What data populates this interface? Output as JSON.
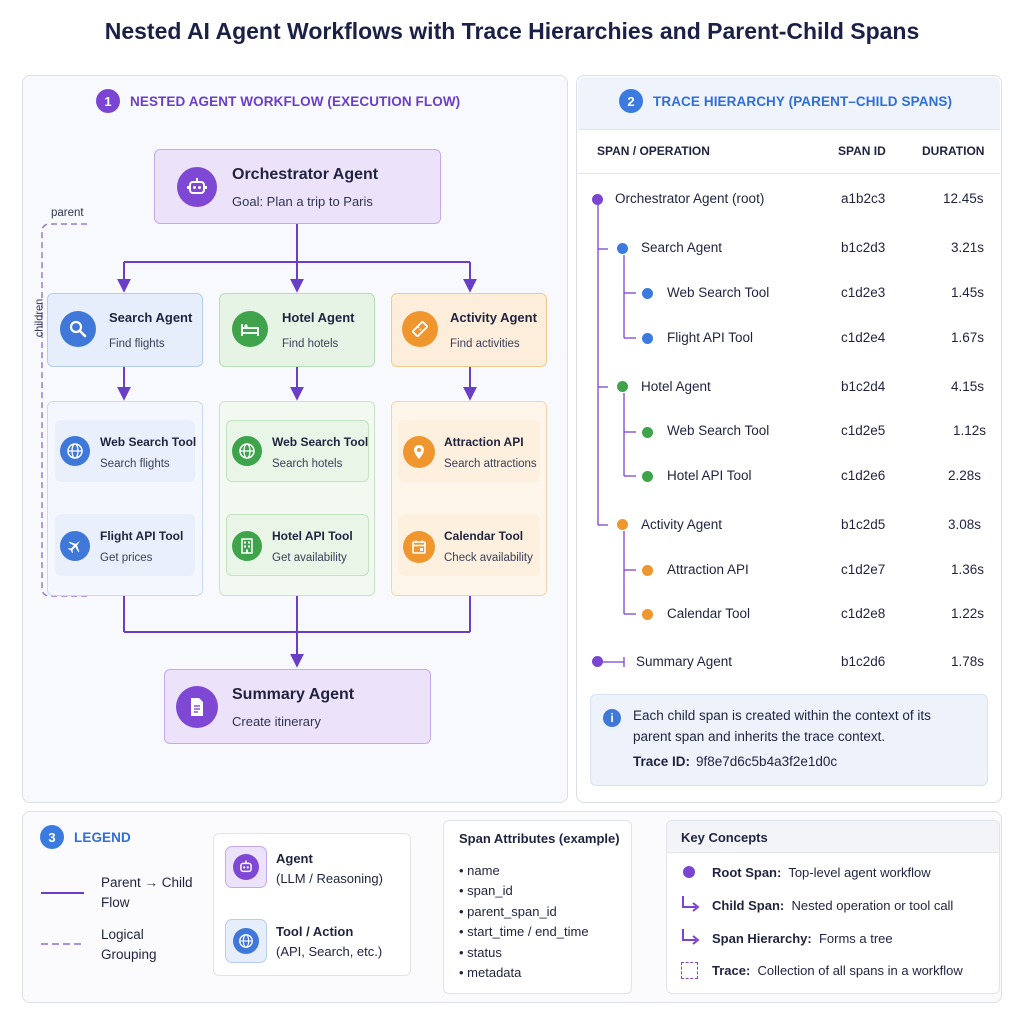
{
  "title": "Nested AI Agent Workflows with Trace Hierarchies and Parent-Child Spans",
  "colors": {
    "purple": "#7b45d3",
    "blue": "#3b7be0",
    "green": "#3ea34a",
    "orange": "#f0962f"
  },
  "workflow": {
    "number": "1",
    "heading": "NESTED AGENT WORKFLOW (EXECUTION FLOW)",
    "orchestrator": {
      "name": "Orchestrator Agent",
      "goal": "Goal: Plan a trip to Paris",
      "icon": "robot-icon"
    },
    "parent_label": "parent",
    "children_label": "children",
    "agents": [
      {
        "name": "Search Agent",
        "desc": "Find flights",
        "icon": "magnifier-icon"
      },
      {
        "name": "Hotel Agent",
        "desc": "Find hotels",
        "icon": "bed-icon"
      },
      {
        "name": "Activity Agent",
        "desc": "Find activities",
        "icon": "ticket-icon"
      }
    ],
    "tools": [
      {
        "name": "Web Search Tool",
        "desc": "Search flights",
        "icon": "globe-icon"
      },
      {
        "name": "Flight API Tool",
        "desc": "Get prices",
        "icon": "airplane-icon"
      },
      {
        "name": "Web Search Tool",
        "desc": "Search hotels",
        "icon": "globe-icon"
      },
      {
        "name": "Hotel API Tool",
        "desc": "Get availability",
        "icon": "building-icon"
      },
      {
        "name": "Attraction API",
        "desc": "Search attractions",
        "icon": "location-pin-icon"
      },
      {
        "name": "Calendar Tool",
        "desc": "Check availability",
        "icon": "calendar-icon"
      }
    ],
    "summary": {
      "name": "Summary Agent",
      "desc": "Create itinerary",
      "icon": "document-icon"
    }
  },
  "trace": {
    "number": "2",
    "heading": "TRACE HIERARCHY (PARENT–CHILD SPANS)",
    "columns": {
      "op": "SPAN / OPERATION",
      "id": "SPAN ID",
      "dur": "DURATION"
    },
    "rows": [
      {
        "name": "Orchestrator Agent (root)",
        "id": "a1b2c3",
        "dur": "12.45s"
      },
      {
        "name": "Search Agent",
        "id": "b1c2d3",
        "dur": "3.21s"
      },
      {
        "name": "Web Search Tool",
        "id": "c1d2e3",
        "dur": "1.45s"
      },
      {
        "name": "Flight API Tool",
        "id": "c1d2e4",
        "dur": "1.67s"
      },
      {
        "name": "Hotel Agent",
        "id": "b1c2d4",
        "dur": "4.15s"
      },
      {
        "name": "Web Search Tool",
        "id": "c1d2e5",
        "dur": "1.12s"
      },
      {
        "name": "Hotel API Tool",
        "id": "c1d2e6",
        "dur": "2.28s"
      },
      {
        "name": "Activity Agent",
        "id": "b1c2d5",
        "dur": "3.08s"
      },
      {
        "name": "Attraction API",
        "id": "c1d2e7",
        "dur": "1.36s"
      },
      {
        "name": "Calendar Tool",
        "id": "c1d2e8",
        "dur": "1.22s"
      },
      {
        "name": "Summary Agent",
        "id": "b1c2d6",
        "dur": "1.78s"
      }
    ],
    "info_line1": "Each child span is created within the context of its",
    "info_line2": "parent span and inherits the trace context.",
    "trace_id_label": "Trace ID:",
    "trace_id": "9f8e7d6c5b4a3f2e1d0c"
  },
  "legend": {
    "number": "3",
    "heading": "LEGEND",
    "flow_line1": "Parent → Child",
    "flow_line2": "Flow",
    "group_line1": "Logical",
    "group_line2": "Grouping",
    "agent_title": "Agent",
    "agent_sub": "(LLM / Reasoning)",
    "tool_title": "Tool / Action",
    "tool_sub": "(API, Search, etc.)",
    "attrs_title": "Span Attributes (example)",
    "attrs": [
      "• name",
      "• span_id",
      "• parent_span_id",
      "• start_time / end_time",
      "• status",
      "• metadata"
    ],
    "concepts_title": "Key Concepts",
    "concepts": [
      {
        "term": "Root Span:",
        "desc": "Top-level agent workflow"
      },
      {
        "term": "Child Span:",
        "desc": "Nested operation or tool call"
      },
      {
        "term": "Span Hierarchy:",
        "desc": "Forms a tree"
      },
      {
        "term": "Trace:",
        "desc": "Collection of all spans in a workflow"
      }
    ]
  }
}
